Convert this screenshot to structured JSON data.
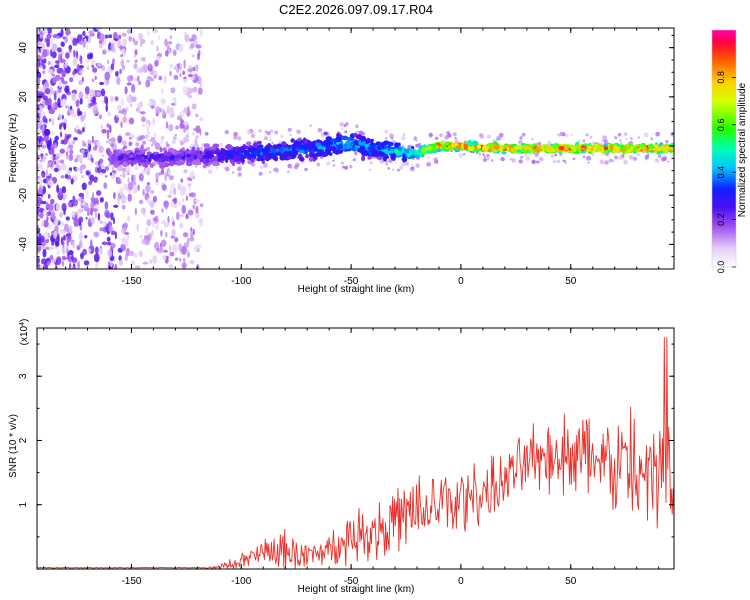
{
  "title": "C2E2.2026.097.09.17.R04",
  "colors": {
    "snr_line": "#e8312a",
    "axis": "#000000",
    "background": "#ffffff"
  },
  "chart_data": [
    {
      "type": "heatmap",
      "name": "spectrogram",
      "xlabel": "Height of straight line (km)",
      "ylabel": "Frequency (Hz)",
      "xlim": [
        -193,
        97
      ],
      "ylim": [
        -50,
        48
      ],
      "xticks": [
        -150,
        -100,
        -50,
        0,
        50
      ],
      "yticks": [
        -40,
        -20,
        0,
        20,
        40
      ],
      "colorbar": {
        "label": "Normalized spectral amplitude",
        "range": [
          0.0,
          1.0
        ],
        "ticks": [
          "0.0",
          "0.2",
          "0.4",
          "0.6",
          "0.8"
        ],
        "colormap": [
          "#ffffff",
          "#e0c8f5",
          "#a050f0",
          "#6010e0",
          "#1010ff",
          "#00ffff",
          "#00ff00",
          "#ffff00",
          "#ff8000",
          "#ff0000",
          "#ff00a0"
        ]
      },
      "band_profile": {
        "description_values": "dominant signal band centered near 0 Hz",
        "heights_km": [
          -193,
          -150,
          -120,
          -100,
          -80,
          -60,
          -50,
          -40,
          -30,
          -20,
          -10,
          0,
          20,
          40,
          60,
          80,
          97
        ],
        "center_hz": [
          -4,
          -5,
          -4,
          -3,
          -2,
          0,
          1,
          -1,
          -2,
          -3,
          0,
          0,
          -1,
          -1,
          -1,
          -1,
          -1
        ],
        "half_width_hz": [
          0,
          5,
          5,
          5,
          5,
          6,
          6,
          5,
          4,
          3,
          2,
          2,
          2,
          2,
          2,
          2,
          2
        ],
        "peak_amplitude": [
          0.15,
          0.25,
          0.25,
          0.35,
          0.4,
          0.4,
          0.45,
          0.4,
          0.5,
          0.6,
          0.9,
          0.95,
          0.9,
          0.9,
          0.9,
          0.9,
          0.85
        ]
      }
    },
    {
      "type": "line",
      "name": "snr",
      "xlabel": "Height of straight line (km)",
      "ylabel": "SNR (10 * v/v)",
      "y_multiplier": "(x10",
      "y_multiplier_exp": "4",
      "y_multiplier_close": ")",
      "xlim": [
        -193,
        97
      ],
      "ylim": [
        0,
        3.75
      ],
      "xticks": [
        -150,
        -100,
        -50,
        0,
        50
      ],
      "yticks": [
        1,
        2,
        3
      ],
      "envelope": {
        "x": [
          -193,
          -120,
          -110,
          -100,
          -90,
          -80,
          -70,
          -60,
          -50,
          -40,
          -30,
          -20,
          -10,
          0,
          10,
          20,
          30,
          40,
          50,
          60,
          70,
          80,
          90,
          97
        ],
        "mean": [
          0.0,
          0.0,
          0.03,
          0.12,
          0.25,
          0.28,
          0.2,
          0.3,
          0.5,
          0.6,
          0.75,
          0.85,
          1.0,
          1.05,
          1.2,
          1.35,
          1.7,
          1.8,
          1.8,
          1.75,
          1.6,
          1.55,
          1.4,
          1.3
        ],
        "noise": [
          0.0,
          0.0,
          0.03,
          0.12,
          0.2,
          0.3,
          0.18,
          0.22,
          0.35,
          0.45,
          0.5,
          0.55,
          0.55,
          0.55,
          0.45,
          0.4,
          0.45,
          0.55,
          0.6,
          0.7,
          0.75,
          0.9,
          1.0,
          1.05
        ],
        "peak_max": 3.75
      }
    }
  ]
}
